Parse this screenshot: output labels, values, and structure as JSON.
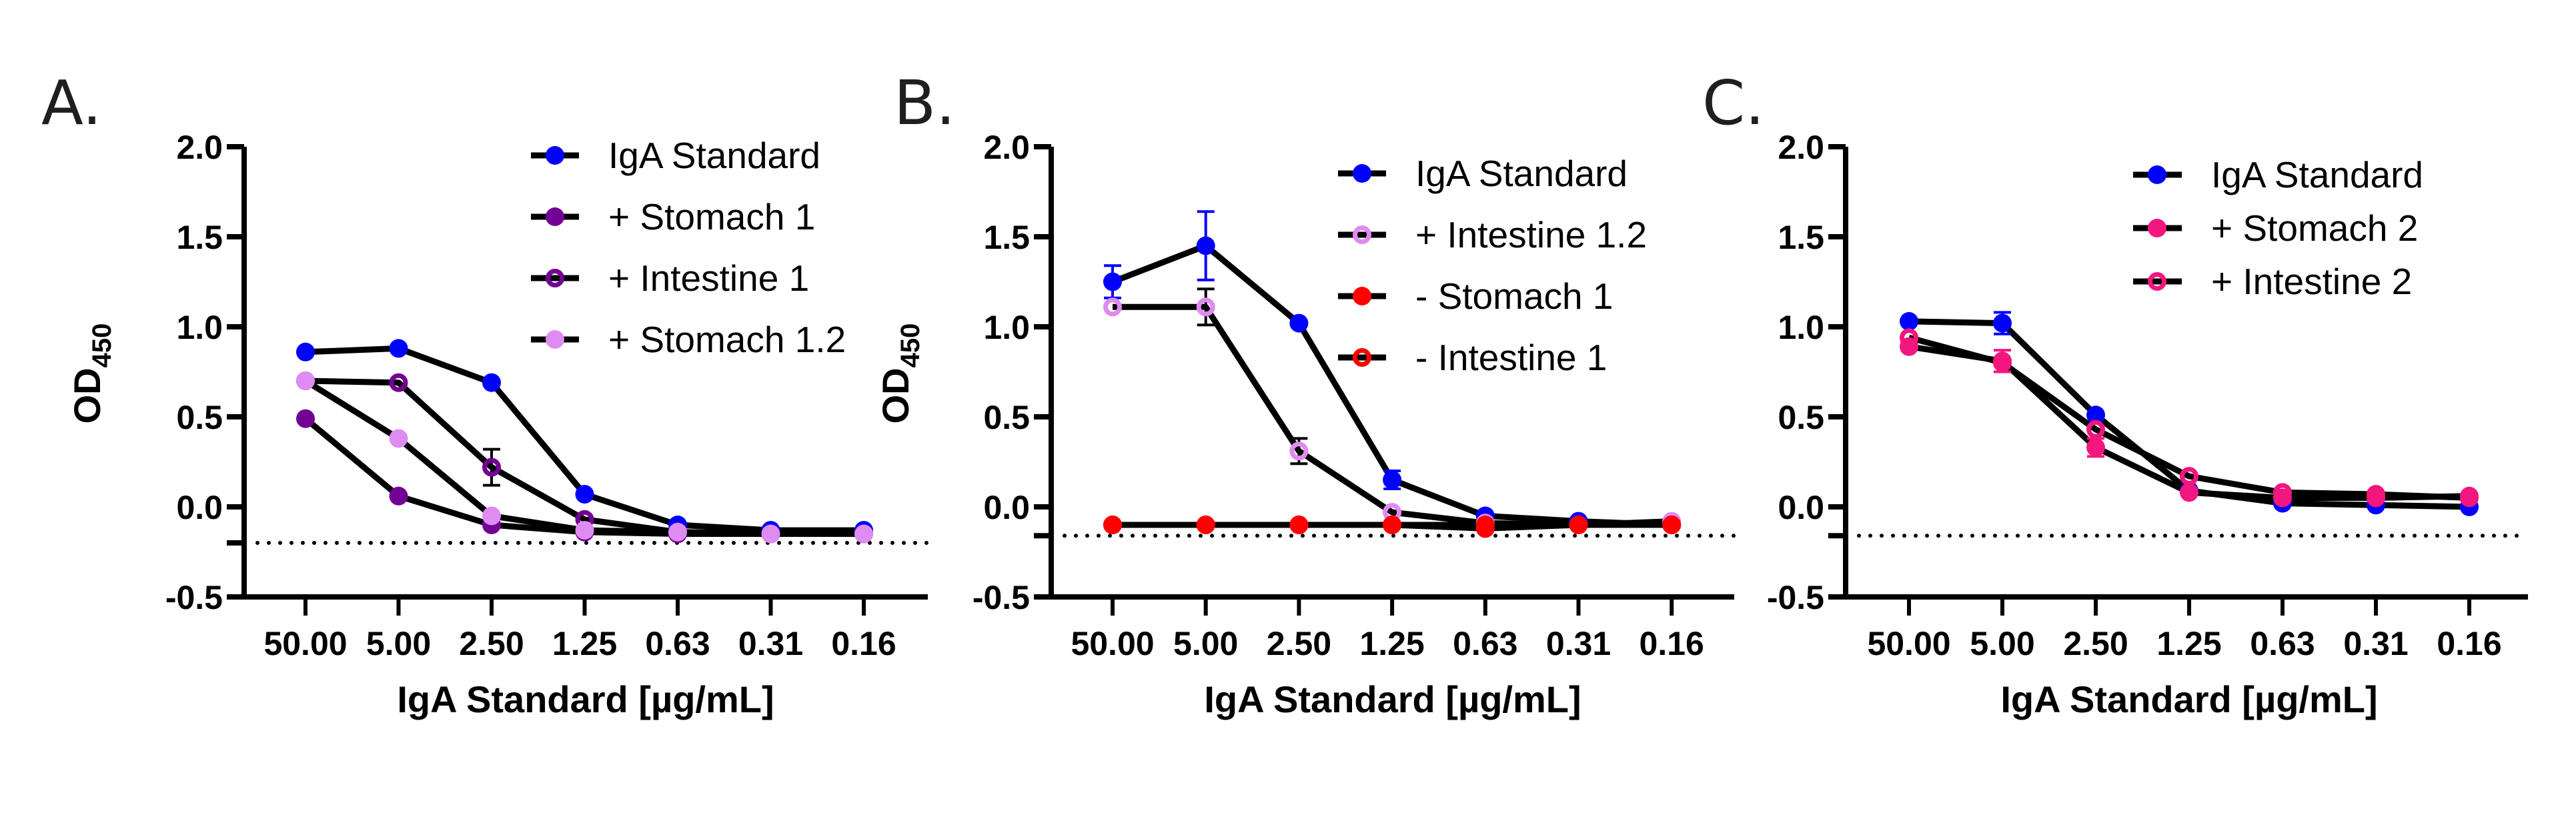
{
  "figure": {
    "panels_count": 3
  },
  "chart_data": [
    {
      "type": "line",
      "panel_label": "A.",
      "title": "",
      "xlabel": "IgA  Standard [µg/mL]",
      "ylabel": "OD",
      "ylabel_subscript": "450",
      "categories": [
        "50.00",
        "5.00",
        "2.50",
        "1.25",
        "0.63",
        "0.31",
        "0.16"
      ],
      "yticks": [
        "2.0",
        "1.5",
        "1.0",
        "0.5",
        "0.0",
        "-0.5"
      ],
      "ylim": [
        -0.5,
        2.0
      ],
      "baseline_dotted": -0.2,
      "grid": false,
      "legend_position": "top-right",
      "series": [
        {
          "name": "IgA Standard",
          "color": "#0000FF",
          "marker": "filled",
          "values": [
            0.86,
            0.88,
            0.69,
            0.07,
            -0.1,
            -0.13,
            -0.13
          ],
          "errors": [
            0.02,
            0.03,
            0.02,
            0.02,
            0.01,
            0.01,
            0.01
          ]
        },
        {
          "name": "+ Stomach 1",
          "color": "#730094",
          "marker": "filled",
          "values": [
            0.49,
            0.06,
            -0.1,
            -0.14,
            -0.15,
            -0.15,
            -0.15
          ],
          "errors": [
            0.02,
            0.01,
            0.01,
            0.01,
            0.01,
            0.01,
            0.01
          ]
        },
        {
          "name": "+ Intestine 1",
          "color": "#730094",
          "marker": "open",
          "values": [
            0.7,
            0.69,
            0.22,
            -0.07,
            -0.14,
            -0.15,
            -0.15
          ],
          "errors": [
            0.02,
            0.02,
            0.1,
            0.01,
            0.01,
            0.01,
            0.01
          ]
        },
        {
          "name": "+ Stomach 1.2",
          "color": "#DE8CF2",
          "marker": "filled",
          "values": [
            0.7,
            0.38,
            -0.05,
            -0.13,
            -0.14,
            -0.15,
            -0.15
          ],
          "errors": [
            0.02,
            0.02,
            0.01,
            0.01,
            0.01,
            0.01,
            0.01
          ]
        }
      ]
    },
    {
      "type": "line",
      "panel_label": "B.",
      "title": "",
      "xlabel": "IgA  Standard [µg/mL]",
      "ylabel": "OD",
      "ylabel_subscript": "450",
      "categories": [
        "50.00",
        "5.00",
        "2.50",
        "1.25",
        "0.63",
        "0.31",
        "0.16"
      ],
      "yticks": [
        "2.0",
        "1.5",
        "1.0",
        "0.5",
        "0.0",
        "-0.5"
      ],
      "ylim": [
        -0.5,
        2.0
      ],
      "baseline_dotted": -0.16,
      "grid": false,
      "legend_position": "top-right",
      "series": [
        {
          "name": "IgA Standard",
          "color": "#0000FF",
          "marker": "filled",
          "values": [
            1.25,
            1.45,
            1.02,
            0.15,
            -0.05,
            -0.08,
            -0.1
          ],
          "errors": [
            0.09,
            0.19,
            0.01,
            0.05,
            0.01,
            0.01,
            0.01
          ]
        },
        {
          "name": "+ Intestine 1.2",
          "color": "#DE8CF2",
          "marker": "open",
          "values": [
            1.11,
            1.11,
            0.31,
            -0.03,
            -0.09,
            -0.1,
            -0.08
          ],
          "errors": [
            0.01,
            0.1,
            0.07,
            0.01,
            0.01,
            0.01,
            0.01
          ]
        },
        {
          "name": "- Stomach 1",
          "color": "#FF0000",
          "marker": "filled",
          "values": [
            -0.1,
            -0.1,
            -0.1,
            -0.1,
            -0.1,
            -0.1,
            -0.1
          ],
          "errors": [
            0.01,
            0.01,
            0.01,
            0.01,
            0.01,
            0.01,
            0.01
          ]
        },
        {
          "name": "- Intestine 1",
          "color": "#FF0000",
          "marker": "open",
          "values": [
            -0.1,
            -0.1,
            -0.1,
            -0.1,
            -0.12,
            -0.1,
            -0.1
          ],
          "errors": [
            0.01,
            0.01,
            0.01,
            0.01,
            0.01,
            0.01,
            0.01
          ]
        }
      ]
    },
    {
      "type": "line",
      "panel_label": "C.",
      "title": "",
      "xlabel": "IgA  Standard [µg/mL]",
      "ylabel": "",
      "ylabel_subscript": "",
      "categories": [
        "50.00",
        "5.00",
        "2.50",
        "1.25",
        "0.63",
        "0.31",
        "0.16"
      ],
      "yticks": [
        "2.0",
        "1.5",
        "1.0",
        "0.5",
        "0.0",
        "-0.5"
      ],
      "ylim": [
        -0.5,
        2.0
      ],
      "baseline_dotted": -0.16,
      "grid": false,
      "legend_position": "top-right",
      "series": [
        {
          "name": "IgA Standard",
          "color": "#0000FF",
          "marker": "filled",
          "values": [
            1.03,
            1.02,
            0.51,
            0.09,
            0.02,
            0.01,
            0.0
          ],
          "errors": [
            0.01,
            0.06,
            0.03,
            0.01,
            0.01,
            0.01,
            0.01
          ]
        },
        {
          "name": "+ Stomach 2",
          "color": "#F2167E",
          "marker": "filled",
          "values": [
            0.89,
            0.81,
            0.33,
            0.08,
            0.05,
            0.05,
            0.06
          ],
          "errors": [
            0.01,
            0.06,
            0.05,
            0.01,
            0.01,
            0.01,
            0.01
          ]
        },
        {
          "name": "+ Intestine 2",
          "color": "#F2167E",
          "marker": "open",
          "values": [
            0.94,
            0.8,
            0.43,
            0.17,
            0.08,
            0.07,
            0.05
          ],
          "errors": [
            0.02,
            0.02,
            0.03,
            0.01,
            0.01,
            0.01,
            0.01
          ]
        }
      ]
    }
  ]
}
